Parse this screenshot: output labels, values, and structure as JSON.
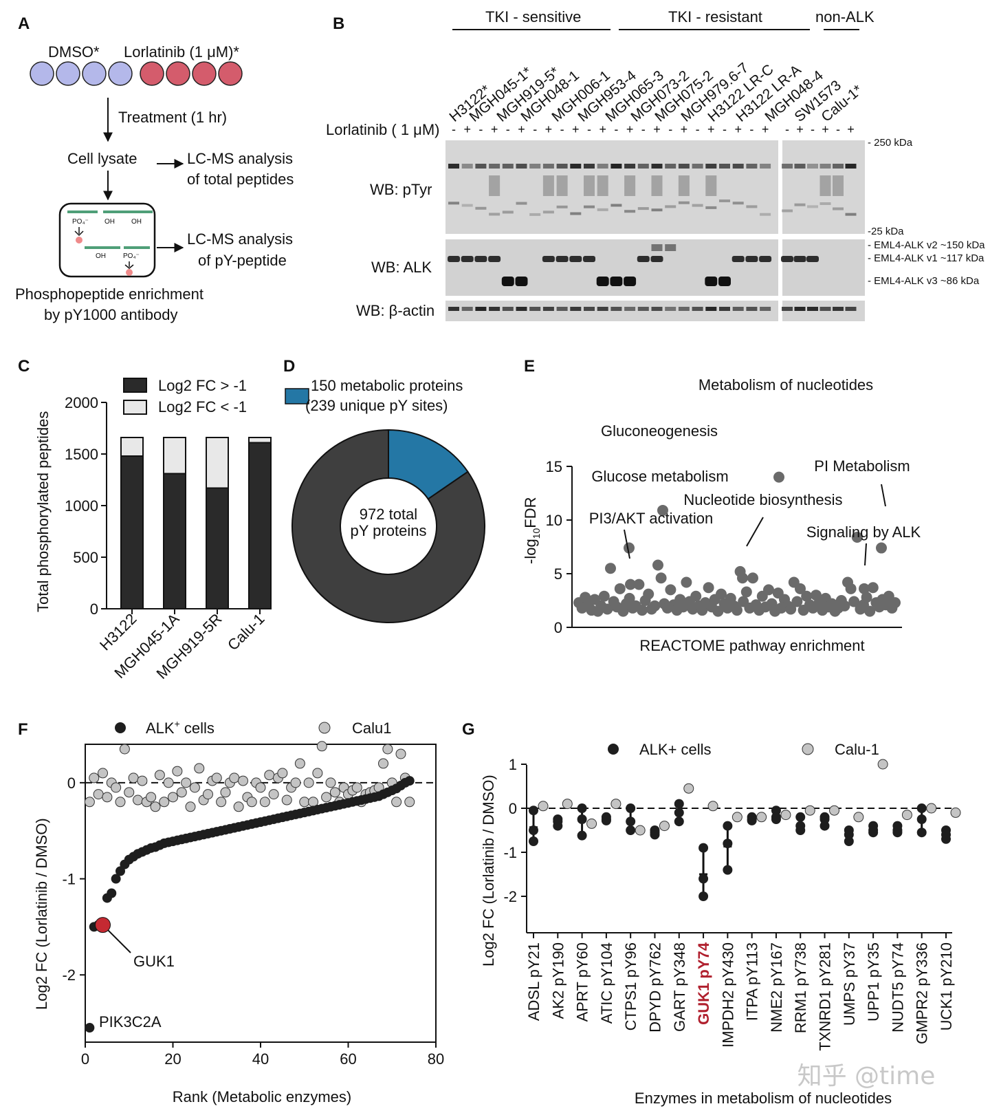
{
  "panel_labels": [
    "A",
    "B",
    "C",
    "D",
    "E",
    "F",
    "G"
  ],
  "panel_a": {
    "dmso": "DMSO*",
    "lorlatinib": "Lorlatinib (1 μM)*",
    "treatment": "Treatment (1 hr)",
    "cell_lysate": "Cell lysate",
    "lcms1_line1": "LC-MS analysis",
    "lcms1_line2": "of total peptides",
    "lcms2_line1": "LC-MS analysis",
    "lcms2_line2": "of pY-peptide",
    "enrich_line1": "Phosphopeptide enrichment",
    "enrich_line2": "by pY1000 antibody",
    "po4": "PO₄⁻",
    "oh": "OH",
    "colors": {
      "dmso": "#b4b8ea",
      "lorlatinib": "#d45c6c",
      "bead": "#ef8a8a",
      "peptide": "#4f9f78"
    }
  },
  "panel_b": {
    "groups": [
      "TKI - sensitive",
      "TKI - resistant",
      "non-ALK"
    ],
    "cell_lines": [
      "H3122*",
      "MGH045-1*",
      "MGH919-5*",
      "MGH048-1",
      "MGH006-1",
      "MGH953-4",
      "MGH065-3",
      "MGH073-2",
      "MGH075-2",
      "MGH979.6-7",
      "H3122 LR-C",
      "H3122 LR-A",
      "MGH048-4",
      "SW1573",
      "Calu-1*"
    ],
    "treatment_label": "Lorlatinib ( 1 μM)",
    "treatment_signs": [
      "-",
      "+"
    ],
    "rows": [
      "WB: pTyr",
      "WB: ALK",
      "WB: β-actin"
    ],
    "markers": [
      "- 250 kDa",
      "-25 kDa",
      "- EML4-ALK v2 ~150 kDa",
      "- EML4-ALK v1 ~117 kDa",
      "- EML4-ALK v3 ~86 kDa"
    ]
  },
  "panel_c": {
    "legend": [
      "Log2 FC > -1",
      "Log2 FC < -1"
    ],
    "ylabel": "Total phosphorylated peptides",
    "yticks": [
      "0",
      "500",
      "1000",
      "1500",
      "2000"
    ]
  },
  "panel_d": {
    "legend_line1": "150 metabolic proteins",
    "legend_line2": "(239 unique pY sites)",
    "center_line1": "972 total",
    "center_line2": "pY proteins",
    "colors": {
      "metabolic": "#2477a5",
      "other": "#3f3f3f"
    }
  },
  "panel_e": {
    "ylabel": "-log10FDR",
    "xlabel": "REACTOME pathway enrichment",
    "yticks": [
      "0",
      "5",
      "10",
      "15"
    ],
    "annotations": [
      "Metabolism of nucleotides",
      "Gluconeogenesis",
      "Glucose metabolism",
      "PI Metabolism",
      "Nucleotide biosynthesis",
      "PI3/AKT activation",
      "Signaling by ALK"
    ]
  },
  "panel_f": {
    "legend": [
      "ALK⁺ cells",
      "Calu1"
    ],
    "ylabel": "Log2 FC (Lorlatinib / DMSO)",
    "xlabel": "Rank (Metabolic enzymes)",
    "xticks": [
      "0",
      "20",
      "40",
      "60",
      "80"
    ],
    "yticks": [
      "0",
      "-1",
      "-2"
    ],
    "annotations": [
      "GUK1",
      "PIK3C2A"
    ]
  },
  "panel_g": {
    "legend": [
      "ALK+ cells",
      "Calu-1"
    ],
    "ylabel": "Log2 FC (Lorlatinib / DMSO)",
    "xlabel": "Enzymes in metabolism of nucleotides",
    "yticks": [
      "1",
      "0",
      "-1",
      "-2"
    ],
    "highlight_color": "#b0202e"
  },
  "watermark": "知乎 @time",
  "chart_data": [
    {
      "panel": "C",
      "type": "bar",
      "stacked": true,
      "categories": [
        "H3122",
        "MGH045-1A",
        "MGH919-5R",
        "Calu-1"
      ],
      "series": [
        {
          "name": "Log2 FC > -1",
          "values": [
            1480,
            1310,
            1170,
            1610
          ]
        },
        {
          "name": "Log2 FC < -1",
          "values": [
            180,
            350,
            490,
            50
          ]
        }
      ],
      "ylim": [
        0,
        2000
      ],
      "legend": "top-right",
      "colors": {
        "Log2 FC > -1": "#2a2a2a",
        "Log2 FC < -1": "#e8e8e8"
      }
    },
    {
      "panel": "D",
      "type": "pie",
      "donut": true,
      "slices": [
        {
          "name": "150 metabolic proteins",
          "value": 150
        },
        {
          "name": "other",
          "value": 822
        }
      ],
      "total": 972
    },
    {
      "panel": "E",
      "type": "scatter",
      "ylim": [
        0,
        15
      ],
      "labeled_points": [
        {
          "label": "Metabolism of nucleotides",
          "y": 14
        },
        {
          "label": "Gluconeogenesis",
          "y": 10.9
        },
        {
          "label": "Glucose metabolism",
          "y": 7.4
        },
        {
          "label": "PI Metabolism",
          "y": 7.4
        },
        {
          "label": "Nucleotide biosynthesis",
          "y": 4.6
        },
        {
          "label": "PI3/AKT activation",
          "y": 4.0
        },
        {
          "label": "Signaling by ALK",
          "y": 3.6
        }
      ],
      "y": [
        2.3,
        1.8,
        2.8,
        2.1,
        1.6,
        2.6,
        1.5,
        2.0,
        2.9,
        1.7,
        5.5,
        2.4,
        1.9,
        3.6,
        1.5,
        2.2,
        2.7,
        1.8,
        2.0,
        4.0,
        1.6,
        2.5,
        3.1,
        1.7,
        2.0,
        5.8,
        4.6,
        2.2,
        1.8,
        3.5,
        2.1,
        1.6,
        2.6,
        1.9,
        4.2,
        2.4,
        1.7,
        2.9,
        2.0,
        1.6,
        2.3,
        3.7,
        1.9,
        2.6,
        1.5,
        3.1,
        2.2,
        1.8,
        2.7,
        2.0,
        1.6,
        5.2,
        2.4,
        3.3,
        1.8,
        4.6,
        2.1,
        1.6,
        2.9,
        1.9,
        3.5,
        2.2,
        1.5,
        3.2,
        1.8,
        2.6,
        2.0,
        1.7,
        4.2,
        2.4,
        3.6,
        1.6,
        2.9,
        2.1,
        1.8,
        3.0,
        2.3,
        1.6,
        2.7,
        1.9,
        2.2,
        1.5,
        1.8,
        2.5,
        2.0,
        4.2,
        3.6,
        2.4,
        8.4,
        1.7,
        2.1,
        2.8,
        1.5,
        3.7,
        2.3,
        1.9,
        2.6,
        2.1,
        2.9,
        1.8,
        2.3
      ],
      "colors": {
        "points": "#6a6a6a"
      }
    },
    {
      "panel": "F",
      "type": "scatter",
      "xlim": [
        0,
        80
      ],
      "ylim": [
        -2.7,
        0.4
      ],
      "series": [
        {
          "name": "ALK⁺ cells",
          "x": [
            1,
            2,
            3,
            4,
            5,
            6,
            7,
            8,
            9,
            10,
            11,
            12,
            13,
            14,
            15,
            16,
            17,
            18,
            19,
            20,
            21,
            22,
            23,
            24,
            25,
            26,
            27,
            28,
            29,
            30,
            31,
            32,
            33,
            34,
            35,
            36,
            37,
            38,
            39,
            40,
            41,
            42,
            43,
            44,
            45,
            46,
            47,
            48,
            49,
            50,
            51,
            52,
            53,
            54,
            55,
            56,
            57,
            58,
            59,
            60,
            61,
            62,
            63,
            64,
            65,
            66,
            67,
            68,
            69,
            70,
            71,
            72,
            73,
            74
          ],
          "y": [
            -2.55,
            -1.5,
            -1.48,
            -1.48,
            -1.2,
            -1.15,
            -1.0,
            -0.92,
            -0.85,
            -0.8,
            -0.77,
            -0.74,
            -0.72,
            -0.7,
            -0.68,
            -0.67,
            -0.65,
            -0.63,
            -0.62,
            -0.61,
            -0.6,
            -0.59,
            -0.58,
            -0.57,
            -0.56,
            -0.55,
            -0.54,
            -0.53,
            -0.52,
            -0.51,
            -0.5,
            -0.49,
            -0.48,
            -0.47,
            -0.46,
            -0.45,
            -0.44,
            -0.43,
            -0.42,
            -0.41,
            -0.4,
            -0.39,
            -0.38,
            -0.37,
            -0.36,
            -0.35,
            -0.34,
            -0.33,
            -0.32,
            -0.31,
            -0.3,
            -0.29,
            -0.28,
            -0.27,
            -0.26,
            -0.25,
            -0.24,
            -0.23,
            -0.22,
            -0.21,
            -0.2,
            -0.19,
            -0.18,
            -0.17,
            -0.16,
            -0.15,
            -0.14,
            -0.12,
            -0.1,
            -0.08,
            -0.06,
            -0.03,
            0.0,
            0.02
          ]
        },
        {
          "name": "Calu1",
          "x": [
            1,
            2,
            3,
            4,
            5,
            6,
            7,
            8,
            9,
            10,
            11,
            12,
            13,
            14,
            15,
            16,
            17,
            18,
            19,
            20,
            21,
            22,
            23,
            24,
            25,
            26,
            27,
            28,
            29,
            30,
            31,
            32,
            33,
            34,
            35,
            36,
            37,
            38,
            39,
            40,
            41,
            42,
            43,
            44,
            45,
            46,
            47,
            48,
            49,
            50,
            51,
            52,
            53,
            54,
            55,
            56,
            57,
            58,
            59,
            60,
            61,
            62,
            63,
            64,
            65,
            66,
            67,
            68,
            69,
            70,
            71,
            72,
            73,
            74
          ],
          "y": [
            -0.2,
            0.05,
            -0.12,
            0.1,
            -0.15,
            0.0,
            -0.05,
            -0.2,
            0.35,
            -0.1,
            0.05,
            -0.18,
            0.02,
            -0.2,
            -0.15,
            -0.25,
            0.08,
            -0.2,
            0.0,
            -0.15,
            0.12,
            -0.1,
            0.0,
            -0.25,
            -0.05,
            0.15,
            -0.18,
            -0.12,
            0.02,
            0.05,
            -0.2,
            -0.1,
            0.0,
            0.05,
            -0.25,
            0.02,
            -0.15,
            -0.2,
            0.0,
            -0.05,
            -0.2,
            0.08,
            -0.12,
            0.05,
            0.1,
            -0.18,
            -0.05,
            0.0,
            0.2,
            -0.2,
            0.0,
            -0.2,
            0.1,
            0.38,
            -0.15,
            0.0,
            -0.1,
            -0.2,
            -0.05,
            -0.12,
            -0.08,
            -0.05,
            -0.2,
            -0.12,
            -0.1,
            -0.08,
            -0.05,
            0.2,
            0.35,
            0.0,
            -0.2,
            0.3,
            0.05,
            -0.2
          ]
        }
      ],
      "labeled_points": [
        {
          "label": "GUK1",
          "x": 4,
          "y": -1.48
        },
        {
          "label": "PIK3C2A",
          "x": 1,
          "y": -2.55
        }
      ],
      "colors": {
        "ALK⁺ cells": "#1e1e1e",
        "Calu1": "#c4c4c4",
        "GUK1": "#c52a32"
      }
    },
    {
      "panel": "G",
      "type": "scatter",
      "categories": [
        "ADSL pY21",
        "AK2 pY190",
        "APRT pY60",
        "ATIC pY104",
        "CTPS1 pY96",
        "DPYD pY762",
        "GART pY348",
        "GUK1 pY74",
        "IMPDH2 pY430",
        "ITPA pY113",
        "NME2 pY167",
        "RRM1 pY738",
        "TXNRD1 pY281",
        "UMPS pY37",
        "UPP1 pY35",
        "NUDT5 pY74",
        "GMPR2 pY336",
        "UCK1 pY210"
      ],
      "ylim": [
        -2.5,
        1.2
      ],
      "series": [
        {
          "name": "ALK+ cells",
          "points": [
            [
              -0.05,
              -0.5,
              -0.75
            ],
            [
              -0.25,
              -0.4,
              -0.3
            ],
            [
              0.0,
              -0.25,
              -0.62
            ],
            [
              -0.2,
              -0.25,
              -0.28
            ],
            [
              0.0,
              -0.3,
              -0.5
            ],
            [
              -0.5,
              -0.6,
              -0.55
            ],
            [
              0.1,
              -0.1,
              -0.3
            ],
            [
              -0.9,
              -1.6,
              -2.0
            ],
            [
              -0.4,
              -0.8,
              -1.4
            ],
            [
              -0.2,
              -0.25,
              -0.28
            ],
            [
              -0.05,
              -0.2,
              -0.25
            ],
            [
              -0.2,
              -0.4,
              -0.5
            ],
            [
              -0.2,
              -0.4,
              -0.25
            ],
            [
              -0.5,
              -0.6,
              -0.75
            ],
            [
              -0.4,
              -0.5,
              -0.55
            ],
            [
              -0.4,
              -0.5,
              -0.55
            ],
            [
              0.0,
              -0.25,
              -0.55
            ],
            [
              -0.5,
              -0.6,
              -0.7
            ]
          ]
        },
        {
          "name": "Calu-1",
          "values": [
            0.05,
            0.1,
            -0.35,
            0.1,
            -0.5,
            -0.4,
            0.45,
            0.05,
            -0.2,
            -0.2,
            -0.15,
            -0.05,
            -0.05,
            -0.2,
            1.0,
            -0.15,
            0.0,
            -0.1
          ]
        }
      ],
      "colors": {
        "ALK+ cells": "#1e1e1e",
        "Calu-1": "#c4c4c4"
      }
    }
  ]
}
